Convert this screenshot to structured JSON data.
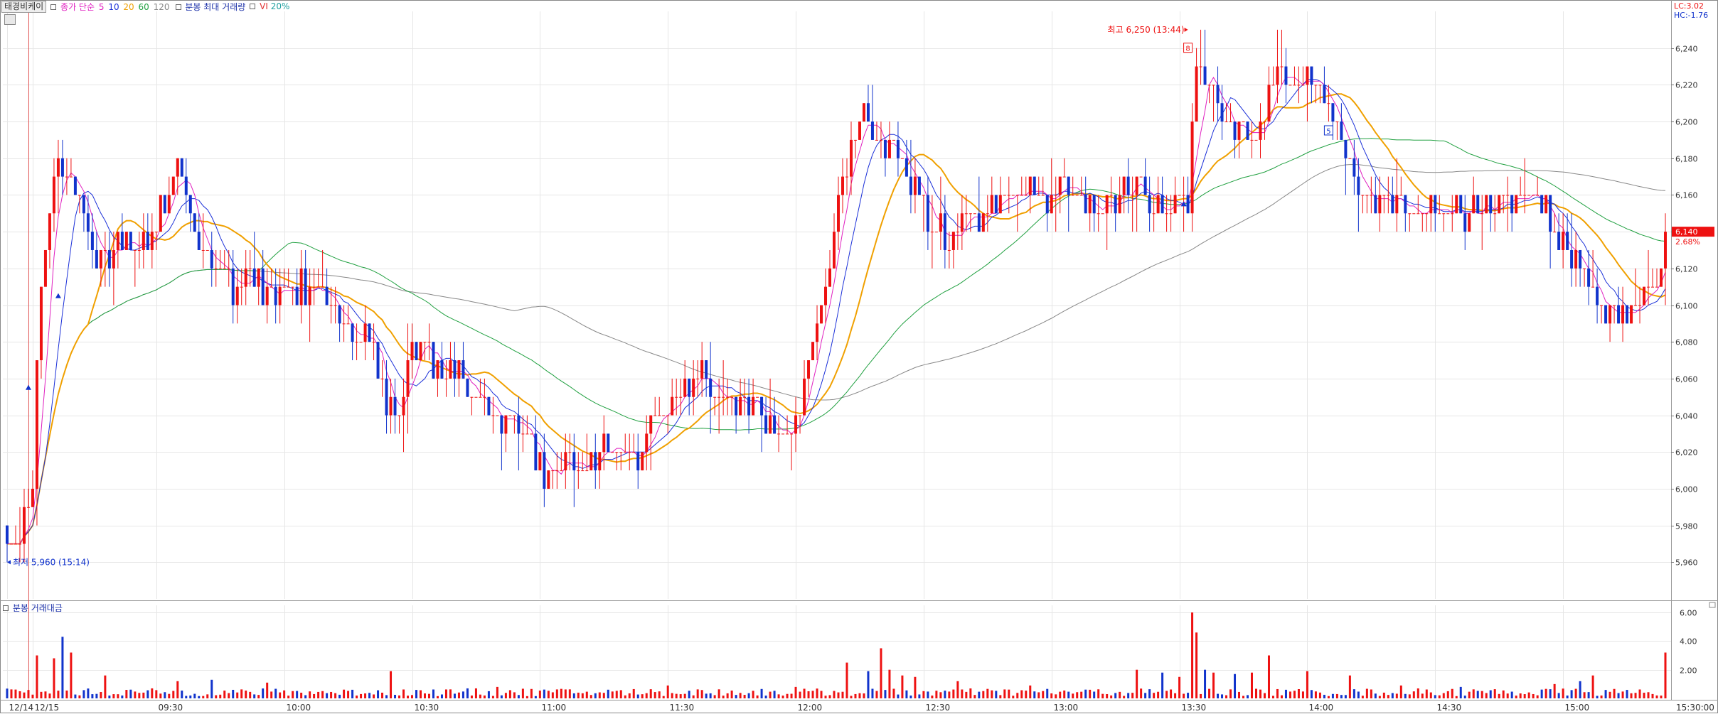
{
  "header": {
    "stock_name": "태경비케이",
    "ma_title": "종가 단순",
    "ma_periods": [
      "5",
      "10",
      "20",
      "60",
      "120"
    ],
    "ma_colors": [
      "#e020c0",
      "#1a2fd8",
      "#f0a000",
      "#20a040",
      "#888888"
    ],
    "max_volume_label": "분봉 최대 거래량",
    "vi_label": "VI",
    "vi_value": "20%"
  },
  "price_panel": {
    "lc_label": "LC:3.02",
    "hc_label": "HC:-1.76",
    "current_price": "6,140",
    "change_pct": "2.68%",
    "high_annotation": "최고 6,250 (13:44)",
    "low_annotation": "최저 5,960 (15:14)",
    "marker_8": "8",
    "marker_5": "5"
  },
  "volume_panel": {
    "title": "분봉 거래대금"
  },
  "x_axis_labels": [
    "12/14",
    "12/15",
    "09:30",
    "10:00",
    "10:30",
    "11:00",
    "11:30",
    "12:00",
    "12:30",
    "13:00",
    "13:30",
    "14:00",
    "14:30",
    "15:00",
    "15:30:00"
  ],
  "colors": {
    "up": "#ee1111",
    "down": "#1133cc"
  },
  "chart_data": [
    {
      "type": "candlestick",
      "title": "",
      "ylim": [
        5940,
        6260
      ],
      "y_ticks": [
        "6,240",
        "6,220",
        "6,200",
        "6,180",
        "6,160",
        "6,140",
        "6,120",
        "6,100",
        "6,080",
        "6,060",
        "6,040",
        "6,020",
        "6,000",
        "5,980",
        "5,960"
      ],
      "x_range": [
        -6,
        385
      ],
      "x_ticks": [
        {
          "x": -5,
          "label": "12/14"
        },
        {
          "x": 1,
          "label": "12/15"
        },
        {
          "x": 30,
          "label": "09:30"
        },
        {
          "x": 60,
          "label": "10:00"
        },
        {
          "x": 90,
          "label": "10:30"
        },
        {
          "x": 120,
          "label": "11:00"
        },
        {
          "x": 150,
          "label": "11:30"
        },
        {
          "x": 180,
          "label": "12:00"
        },
        {
          "x": 210,
          "label": "12:30"
        },
        {
          "x": 240,
          "label": "13:00"
        },
        {
          "x": 270,
          "label": "13:30"
        },
        {
          "x": 300,
          "label": "14:00"
        },
        {
          "x": 330,
          "label": "14:30"
        },
        {
          "x": 360,
          "label": "15:00"
        },
        {
          "x": 390,
          "label": "15:30:00"
        }
      ],
      "anchors": [
        [
          -5,
          5980
        ],
        [
          -2,
          5975
        ],
        [
          1,
          5990
        ],
        [
          2,
          6080
        ],
        [
          4,
          6130
        ],
        [
          6,
          6170
        ],
        [
          8,
          6180
        ],
        [
          11,
          6160
        ],
        [
          14,
          6140
        ],
        [
          17,
          6120
        ],
        [
          21,
          6130
        ],
        [
          25,
          6130
        ],
        [
          29,
          6140
        ],
        [
          33,
          6160
        ],
        [
          35,
          6180
        ],
        [
          38,
          6150
        ],
        [
          42,
          6130
        ],
        [
          45,
          6120
        ],
        [
          48,
          6110
        ],
        [
          52,
          6120
        ],
        [
          57,
          6100
        ],
        [
          61,
          6110
        ],
        [
          65,
          6110
        ],
        [
          70,
          6100
        ],
        [
          75,
          6090
        ],
        [
          80,
          6080
        ],
        [
          83,
          6050
        ],
        [
          86,
          6040
        ],
        [
          89,
          6070
        ],
        [
          93,
          6075
        ],
        [
          97,
          6065
        ],
        [
          101,
          6060
        ],
        [
          105,
          6050
        ],
        [
          110,
          6040
        ],
        [
          115,
          6030
        ],
        [
          119,
          6015
        ],
        [
          123,
          6010
        ],
        [
          127,
          6020
        ],
        [
          131,
          6015
        ],
        [
          135,
          6025
        ],
        [
          139,
          6020
        ],
        [
          143,
          6015
        ],
        [
          146,
          6035
        ],
        [
          150,
          6045
        ],
        [
          154,
          6055
        ],
        [
          158,
          6060
        ],
        [
          162,
          6050
        ],
        [
          166,
          6045
        ],
        [
          170,
          6045
        ],
        [
          174,
          6035
        ],
        [
          177,
          6025
        ],
        [
          180,
          6040
        ],
        [
          183,
          6070
        ],
        [
          186,
          6100
        ],
        [
          189,
          6140
        ],
        [
          192,
          6180
        ],
        [
          196,
          6200
        ],
        [
          200,
          6190
        ],
        [
          204,
          6180
        ],
        [
          208,
          6160
        ],
        [
          212,
          6140
        ],
        [
          216,
          6135
        ],
        [
          220,
          6140
        ],
        [
          224,
          6150
        ],
        [
          228,
          6155
        ],
        [
          232,
          6160
        ],
        [
          236,
          6165
        ],
        [
          240,
          6155
        ],
        [
          244,
          6170
        ],
        [
          248,
          6160
        ],
        [
          252,
          6150
        ],
        [
          256,
          6155
        ],
        [
          260,
          6165
        ],
        [
          264,
          6160
        ],
        [
          268,
          6150
        ],
        [
          272,
          6160
        ],
        [
          274,
          6225
        ],
        [
          278,
          6210
        ],
        [
          282,
          6200
        ],
        [
          286,
          6190
        ],
        [
          290,
          6210
        ],
        [
          293,
          6225
        ],
        [
          297,
          6215
        ],
        [
          301,
          6220
        ],
        [
          305,
          6210
        ],
        [
          308,
          6190
        ],
        [
          311,
          6175
        ],
        [
          314,
          6160
        ],
        [
          318,
          6150
        ],
        [
          322,
          6155
        ],
        [
          326,
          6155
        ],
        [
          330,
          6150
        ],
        [
          334,
          6155
        ],
        [
          338,
          6150
        ],
        [
          342,
          6150
        ],
        [
          346,
          6155
        ],
        [
          350,
          6160
        ],
        [
          354,
          6155
        ],
        [
          358,
          6140
        ],
        [
          362,
          6125
        ],
        [
          366,
          6110
        ],
        [
          370,
          6100
        ],
        [
          374,
          6095
        ],
        [
          378,
          6100
        ],
        [
          380,
          6105
        ],
        [
          382,
          6110
        ],
        [
          384,
          6140
        ]
      ],
      "volume_ylim": [
        0,
        6.5
      ],
      "volume_ticks": [
        "6.00",
        "4.00",
        "2.00"
      ],
      "volume_spikes": [
        [
          2,
          3.0
        ],
        [
          6,
          2.8
        ],
        [
          8,
          4.3
        ],
        [
          10,
          3.2
        ],
        [
          18,
          1.6
        ],
        [
          35,
          1.2
        ],
        [
          43,
          1.3
        ],
        [
          56,
          1.1
        ],
        [
          85,
          1.9
        ],
        [
          110,
          0.8
        ],
        [
          150,
          0.9
        ],
        [
          180,
          0.8
        ],
        [
          192,
          2.5
        ],
        [
          197,
          1.9
        ],
        [
          200,
          3.5
        ],
        [
          202,
          2.0
        ],
        [
          205,
          1.6
        ],
        [
          208,
          1.5
        ],
        [
          218,
          1.2
        ],
        [
          235,
          0.9
        ],
        [
          260,
          2.0
        ],
        [
          266,
          1.8
        ],
        [
          270,
          1.5
        ],
        [
          273,
          6.0
        ],
        [
          274,
          4.6
        ],
        [
          276,
          2.0
        ],
        [
          278,
          1.8
        ],
        [
          283,
          1.7
        ],
        [
          287,
          1.8
        ],
        [
          291,
          3.0
        ],
        [
          300,
          1.9
        ],
        [
          310,
          1.6
        ],
        [
          322,
          0.9
        ],
        [
          336,
          0.8
        ],
        [
          358,
          1.0
        ],
        [
          364,
          1.2
        ],
        [
          367,
          1.6
        ],
        [
          384,
          3.2
        ]
      ]
    }
  ]
}
